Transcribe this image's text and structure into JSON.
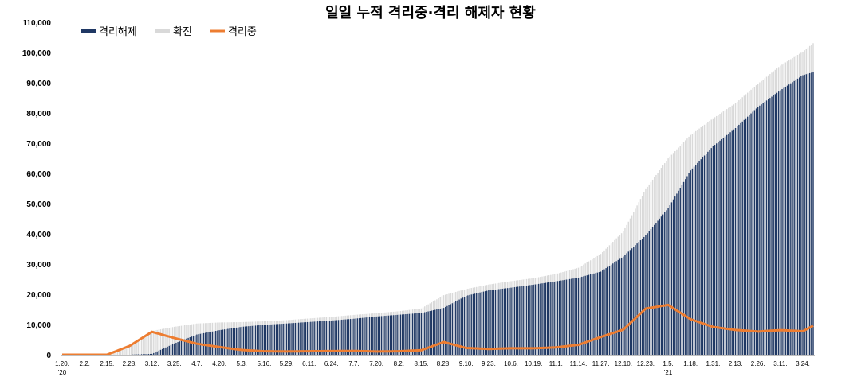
{
  "chart_data": {
    "type": "bar",
    "title": "일일 누적 격리중·격리 해제자 현황",
    "xlabel": "",
    "ylabel": "",
    "ylim": [
      0,
      110000
    ],
    "y_ticks": [
      "0",
      "10,000",
      "20,000",
      "30,000",
      "40,000",
      "50,000",
      "60,000",
      "70,000",
      "80,000",
      "90,000",
      "100,000",
      "110,000"
    ],
    "x_tick_labels": [
      "1.20.",
      "2.2.",
      "2.15.",
      "2.28.",
      "3.12.",
      "3.25.",
      "4.7.",
      "4.20.",
      "5.3.",
      "5.16.",
      "5.29.",
      "6.11.",
      "6.24.",
      "7.7.",
      "7.20.",
      "8.2.",
      "8.15.",
      "8.28.",
      "9.10.",
      "9.23.",
      "10.6.",
      "10.19.",
      "11.1.",
      "11.14.",
      "11.27.",
      "12.10.",
      "12.23.",
      "1.5.",
      "1.18.",
      "1.31.",
      "2.13.",
      "2.26.",
      "3.11.",
      "3.24."
    ],
    "year_labels": [
      {
        "tick": "1.20.",
        "text": "'20"
      },
      {
        "tick": "1.5.",
        "text": "'21"
      }
    ],
    "legend": {
      "position": "top-left",
      "entries": [
        "격리해제",
        "확진",
        "격리중"
      ]
    },
    "grid": false,
    "colors": {
      "released": "#1f3864",
      "confirmed": "#d9d9d9",
      "isolated": "#ed7d31"
    },
    "x_dates": [
      "2020-01-20",
      "2020-02-02",
      "2020-02-15",
      "2020-02-28",
      "2020-03-12",
      "2020-03-25",
      "2020-04-07",
      "2020-04-20",
      "2020-05-03",
      "2020-05-16",
      "2020-05-29",
      "2020-06-11",
      "2020-06-24",
      "2020-07-07",
      "2020-07-20",
      "2020-08-02",
      "2020-08-15",
      "2020-08-28",
      "2020-09-10",
      "2020-09-23",
      "2020-10-06",
      "2020-10-19",
      "2020-11-01",
      "2020-11-14",
      "2020-11-27",
      "2020-12-10",
      "2020-12-23",
      "2021-01-05",
      "2021-01-18",
      "2021-01-31",
      "2021-02-13",
      "2021-02-26",
      "2021-03-11",
      "2021-03-24",
      "2021-03-30"
    ],
    "series": [
      {
        "name": "확진",
        "type": "bar",
        "values": [
          1,
          15,
          28,
          2931,
          7869,
          9241,
          10331,
          10674,
          10801,
          11050,
          11441,
          12003,
          12535,
          13181,
          13745,
          14389,
          15318,
          19699,
          21743,
          23216,
          24353,
          25333,
          26732,
          28769,
          33375,
          40786,
          54770,
          64979,
          72729,
          78205,
          83199,
          89676,
          95635,
          100276,
          103088
        ]
      },
      {
        "name": "격리해제",
        "type": "bar",
        "values": [
          0,
          0,
          16,
          27,
          288,
          3730,
          6694,
          8114,
          9232,
          9888,
          10340,
          10838,
          11317,
          11914,
          12655,
          13234,
          13817,
          15500,
          19500,
          21300,
          22200,
          23200,
          24300,
          25500,
          27500,
          32500,
          39500,
          48500,
          61000,
          69000,
          75000,
          82000,
          87500,
          92500,
          93500
        ]
      },
      {
        "name": "격리중",
        "type": "line",
        "values": [
          1,
          15,
          12,
          2904,
          7581,
          5511,
          3637,
          2560,
          1569,
          1162,
          1101,
          1165,
          1218,
          1267,
          1090,
          1155,
          1501,
          4199,
          2243,
          1916,
          2153,
          2133,
          2432,
          3269,
          5875,
          8286,
          15270,
          16479,
          11729,
          9205,
          8199,
          7676,
          8135,
          7776,
          9588
        ]
      }
    ]
  }
}
